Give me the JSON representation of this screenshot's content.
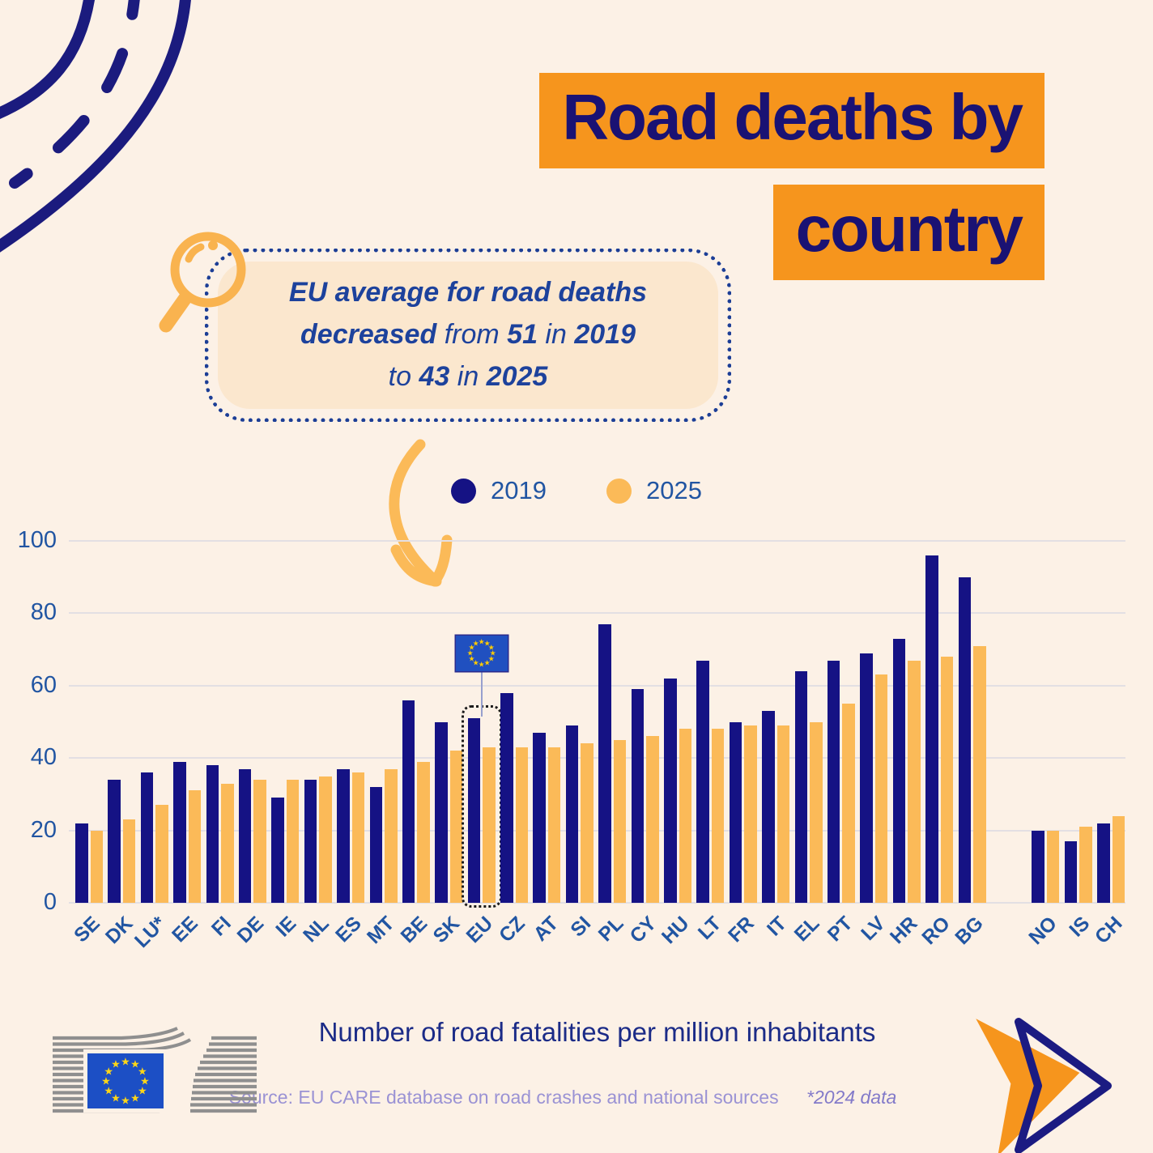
{
  "page": {
    "background": "#FCF1E6",
    "accent_orange": "#F6951D",
    "navy": "#151284",
    "bar_orange": "#FBBA58",
    "axis_blue": "#2155A2"
  },
  "title": {
    "line1": "Road deaths by",
    "line2": "country"
  },
  "callout": {
    "lines": [
      [
        {
          "t": "EU average for road deaths",
          "b": true
        }
      ],
      [
        {
          "t": "decreased",
          "b": true
        },
        {
          "t": " from ",
          "b": false
        },
        {
          "t": "51",
          "b": true
        },
        {
          "t": " in ",
          "b": false
        },
        {
          "t": "2019",
          "b": true
        }
      ],
      [
        {
          "t": "to ",
          "b": false
        },
        {
          "t": "43",
          "b": true
        },
        {
          "t": " in ",
          "b": false
        },
        {
          "t": "2025",
          "b": true
        }
      ]
    ]
  },
  "legend": {
    "items": [
      {
        "label": "2019",
        "color": "#151284"
      },
      {
        "label": "2025",
        "color": "#FBBA58"
      }
    ]
  },
  "chart_data": {
    "type": "bar",
    "title": "Road deaths by country",
    "xlabel": "",
    "ylabel": "Number of road fatalities per million inhabitants",
    "ylim": [
      0,
      100
    ],
    "yticks": [
      0,
      20,
      40,
      60,
      80,
      100
    ],
    "grid": true,
    "legend_position": "top-center",
    "categories": [
      "SE",
      "DK",
      "LU*",
      "EE",
      "FI",
      "DE",
      "IE",
      "NL",
      "ES",
      "MT",
      "BE",
      "SK",
      "EU",
      "CZ",
      "AT",
      "SI",
      "PL",
      "CY",
      "HU",
      "LT",
      "FR",
      "IT",
      "EL",
      "PT",
      "LV",
      "HR",
      "RO",
      "BG",
      "NO",
      "IS",
      "CH"
    ],
    "separator_before": "NO",
    "highlight_category": "EU",
    "series": [
      {
        "name": "2019",
        "color": "#151284",
        "values": [
          22,
          34,
          36,
          39,
          38,
          37,
          29,
          34,
          37,
          32,
          56,
          50,
          51,
          58,
          47,
          49,
          77,
          59,
          62,
          67,
          50,
          53,
          64,
          67,
          69,
          73,
          96,
          90,
          20,
          17,
          22
        ]
      },
      {
        "name": "2025",
        "color": "#FBBA58",
        "values": [
          20,
          23,
          27,
          31,
          33,
          34,
          34,
          35,
          36,
          37,
          39,
          42,
          43,
          43,
          43,
          44,
          45,
          46,
          48,
          48,
          49,
          49,
          50,
          55,
          63,
          67,
          68,
          71,
          20,
          21,
          24
        ]
      }
    ]
  },
  "footer": {
    "axis_note": "Number of road fatalities per million inhabitants",
    "source": "Source: EU CARE database on road crashes and national sources",
    "data_note": "*2024 data"
  },
  "icons": {
    "star_glyph": "★",
    "magnifier": "magnifying-glass",
    "road": "road-illustration",
    "eu_flag": "eu-flag",
    "ec_logo": "european-commission-logo",
    "forward_arrow": "forward-arrow",
    "curved_arrow": "curved-down-arrow"
  }
}
